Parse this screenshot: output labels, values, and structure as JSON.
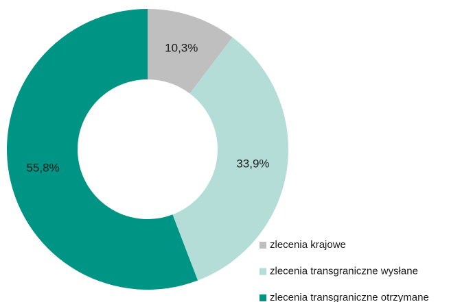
{
  "chart_data": {
    "type": "donut",
    "categories": [
      "zlecenia krajowe",
      "zlecenia transgraniczne wysłane",
      "zlecenia transgraniczne otrzymane"
    ],
    "values": [
      10.3,
      33.9,
      55.8
    ],
    "value_labels": [
      "10,3%",
      "33,9%",
      "55,8%"
    ],
    "colors": [
      "#bfbfbf",
      "#b3ddd6",
      "#009485"
    ],
    "legend": "bottom-right"
  }
}
